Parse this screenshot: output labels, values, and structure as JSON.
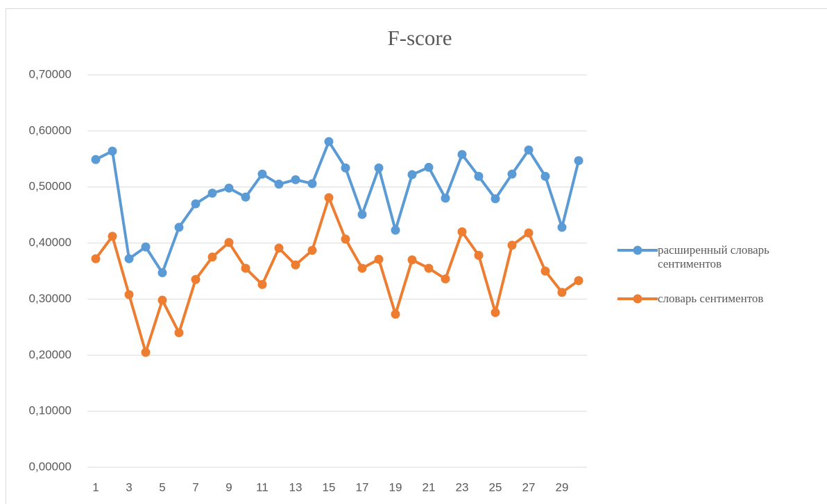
{
  "chart_data": {
    "type": "line",
    "title": "F-score",
    "categories": [
      "1",
      null,
      "3",
      null,
      "5",
      null,
      "7",
      null,
      "9",
      null,
      "11",
      null,
      "13",
      null,
      "15",
      null,
      "17",
      null,
      "19",
      null,
      "21",
      null,
      "23",
      null,
      "25",
      null,
      "27",
      null,
      "29",
      null
    ],
    "series": [
      {
        "name": "расширенный словарь сентиментов",
        "color": "#5b9bd5",
        "values": [
          0.549,
          0.564,
          0.372,
          0.393,
          0.347,
          0.428,
          0.47,
          0.489,
          0.498,
          0.482,
          0.523,
          0.505,
          0.513,
          0.506,
          0.581,
          0.534,
          0.451,
          0.534,
          0.423,
          0.522,
          0.535,
          0.48,
          0.558,
          0.519,
          0.479,
          0.523,
          0.566,
          0.519,
          0.428,
          0.547
        ]
      },
      {
        "name": "словарь сентиментов",
        "color": "#ed7d31",
        "values": [
          0.372,
          0.412,
          0.308,
          0.205,
          0.298,
          0.24,
          0.335,
          0.375,
          0.401,
          0.355,
          0.326,
          0.391,
          0.361,
          0.387,
          0.481,
          0.407,
          0.355,
          0.371,
          0.273,
          0.37,
          0.355,
          0.336,
          0.42,
          0.378,
          0.276,
          0.396,
          0.418,
          0.35,
          0.312,
          0.333
        ]
      }
    ],
    "ylim": [
      0,
      0.7
    ],
    "yticks": [
      {
        "value": 0,
        "label": "0,00000"
      },
      {
        "value": 0.1,
        "label": "0,10000"
      },
      {
        "value": 0.2,
        "label": "0,20000"
      },
      {
        "value": 0.3,
        "label": "0,30000"
      },
      {
        "value": 0.4,
        "label": "0,40000"
      },
      {
        "value": 0.5,
        "label": "0,50000"
      },
      {
        "value": 0.6,
        "label": "0,60000"
      },
      {
        "value": 0.7,
        "label": "0,70000"
      }
    ],
    "grid": true,
    "legend": "right"
  }
}
